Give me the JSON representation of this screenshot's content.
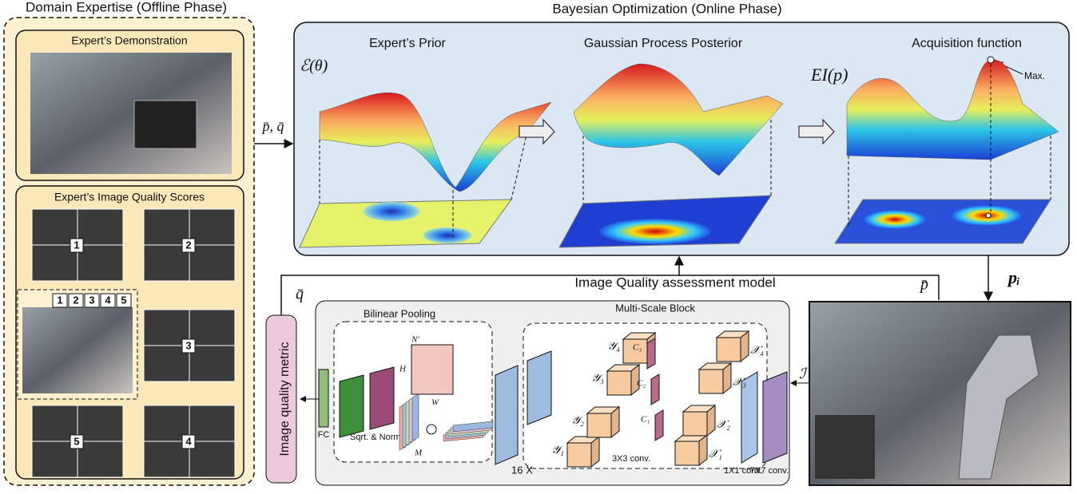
{
  "offline": {
    "title": "Domain Expertise (Offline Phase)",
    "demonstration": "Expert’s Demonstration",
    "scores_title": "Expert’s Image Quality Scores",
    "scores": [
      "1",
      "2",
      "3",
      "5",
      "4"
    ],
    "rating_scale": [
      "1",
      "2",
      "3",
      "4",
      "5"
    ]
  },
  "online": {
    "title": "Bayesian Optimization (Online Phase)",
    "panels": [
      {
        "title": "Expert’s Prior",
        "label": "ℰ(θ)"
      },
      {
        "title": "Gaussian Process Posterior"
      },
      {
        "title": "Acquisition function",
        "label": "EI(p)"
      }
    ],
    "max_label": "Max."
  },
  "arrows": {
    "pq": "p̄, q̄",
    "q": "q̄",
    "p": "p̄",
    "pi": "pᵢ",
    "image": "ℐ"
  },
  "iqa": {
    "title": "Image Quality assessment model",
    "metric": "Image quality metric",
    "bilinear": {
      "title": "Bilinear Pooling",
      "fc": "FC",
      "sqrt": "Sqrt. & Norm.",
      "m": "M",
      "h": "H",
      "w": "W",
      "n": "N′"
    },
    "multiscale": {
      "title": "Multi-Scale Block",
      "repeat": "16 X",
      "conv1": "1X1 conv.",
      "conv7": "7X7 conv.",
      "conv3": "3X3 conv.",
      "outputs": [
        "𝒴₁",
        "𝒴₂",
        "𝒴₃",
        "𝒴₄"
      ],
      "inputs": [
        "𝒳₁",
        "𝒳₂",
        "𝒳₃",
        "𝒳₄"
      ],
      "convs": [
        "C₁",
        "C₂",
        "C₃"
      ]
    }
  }
}
